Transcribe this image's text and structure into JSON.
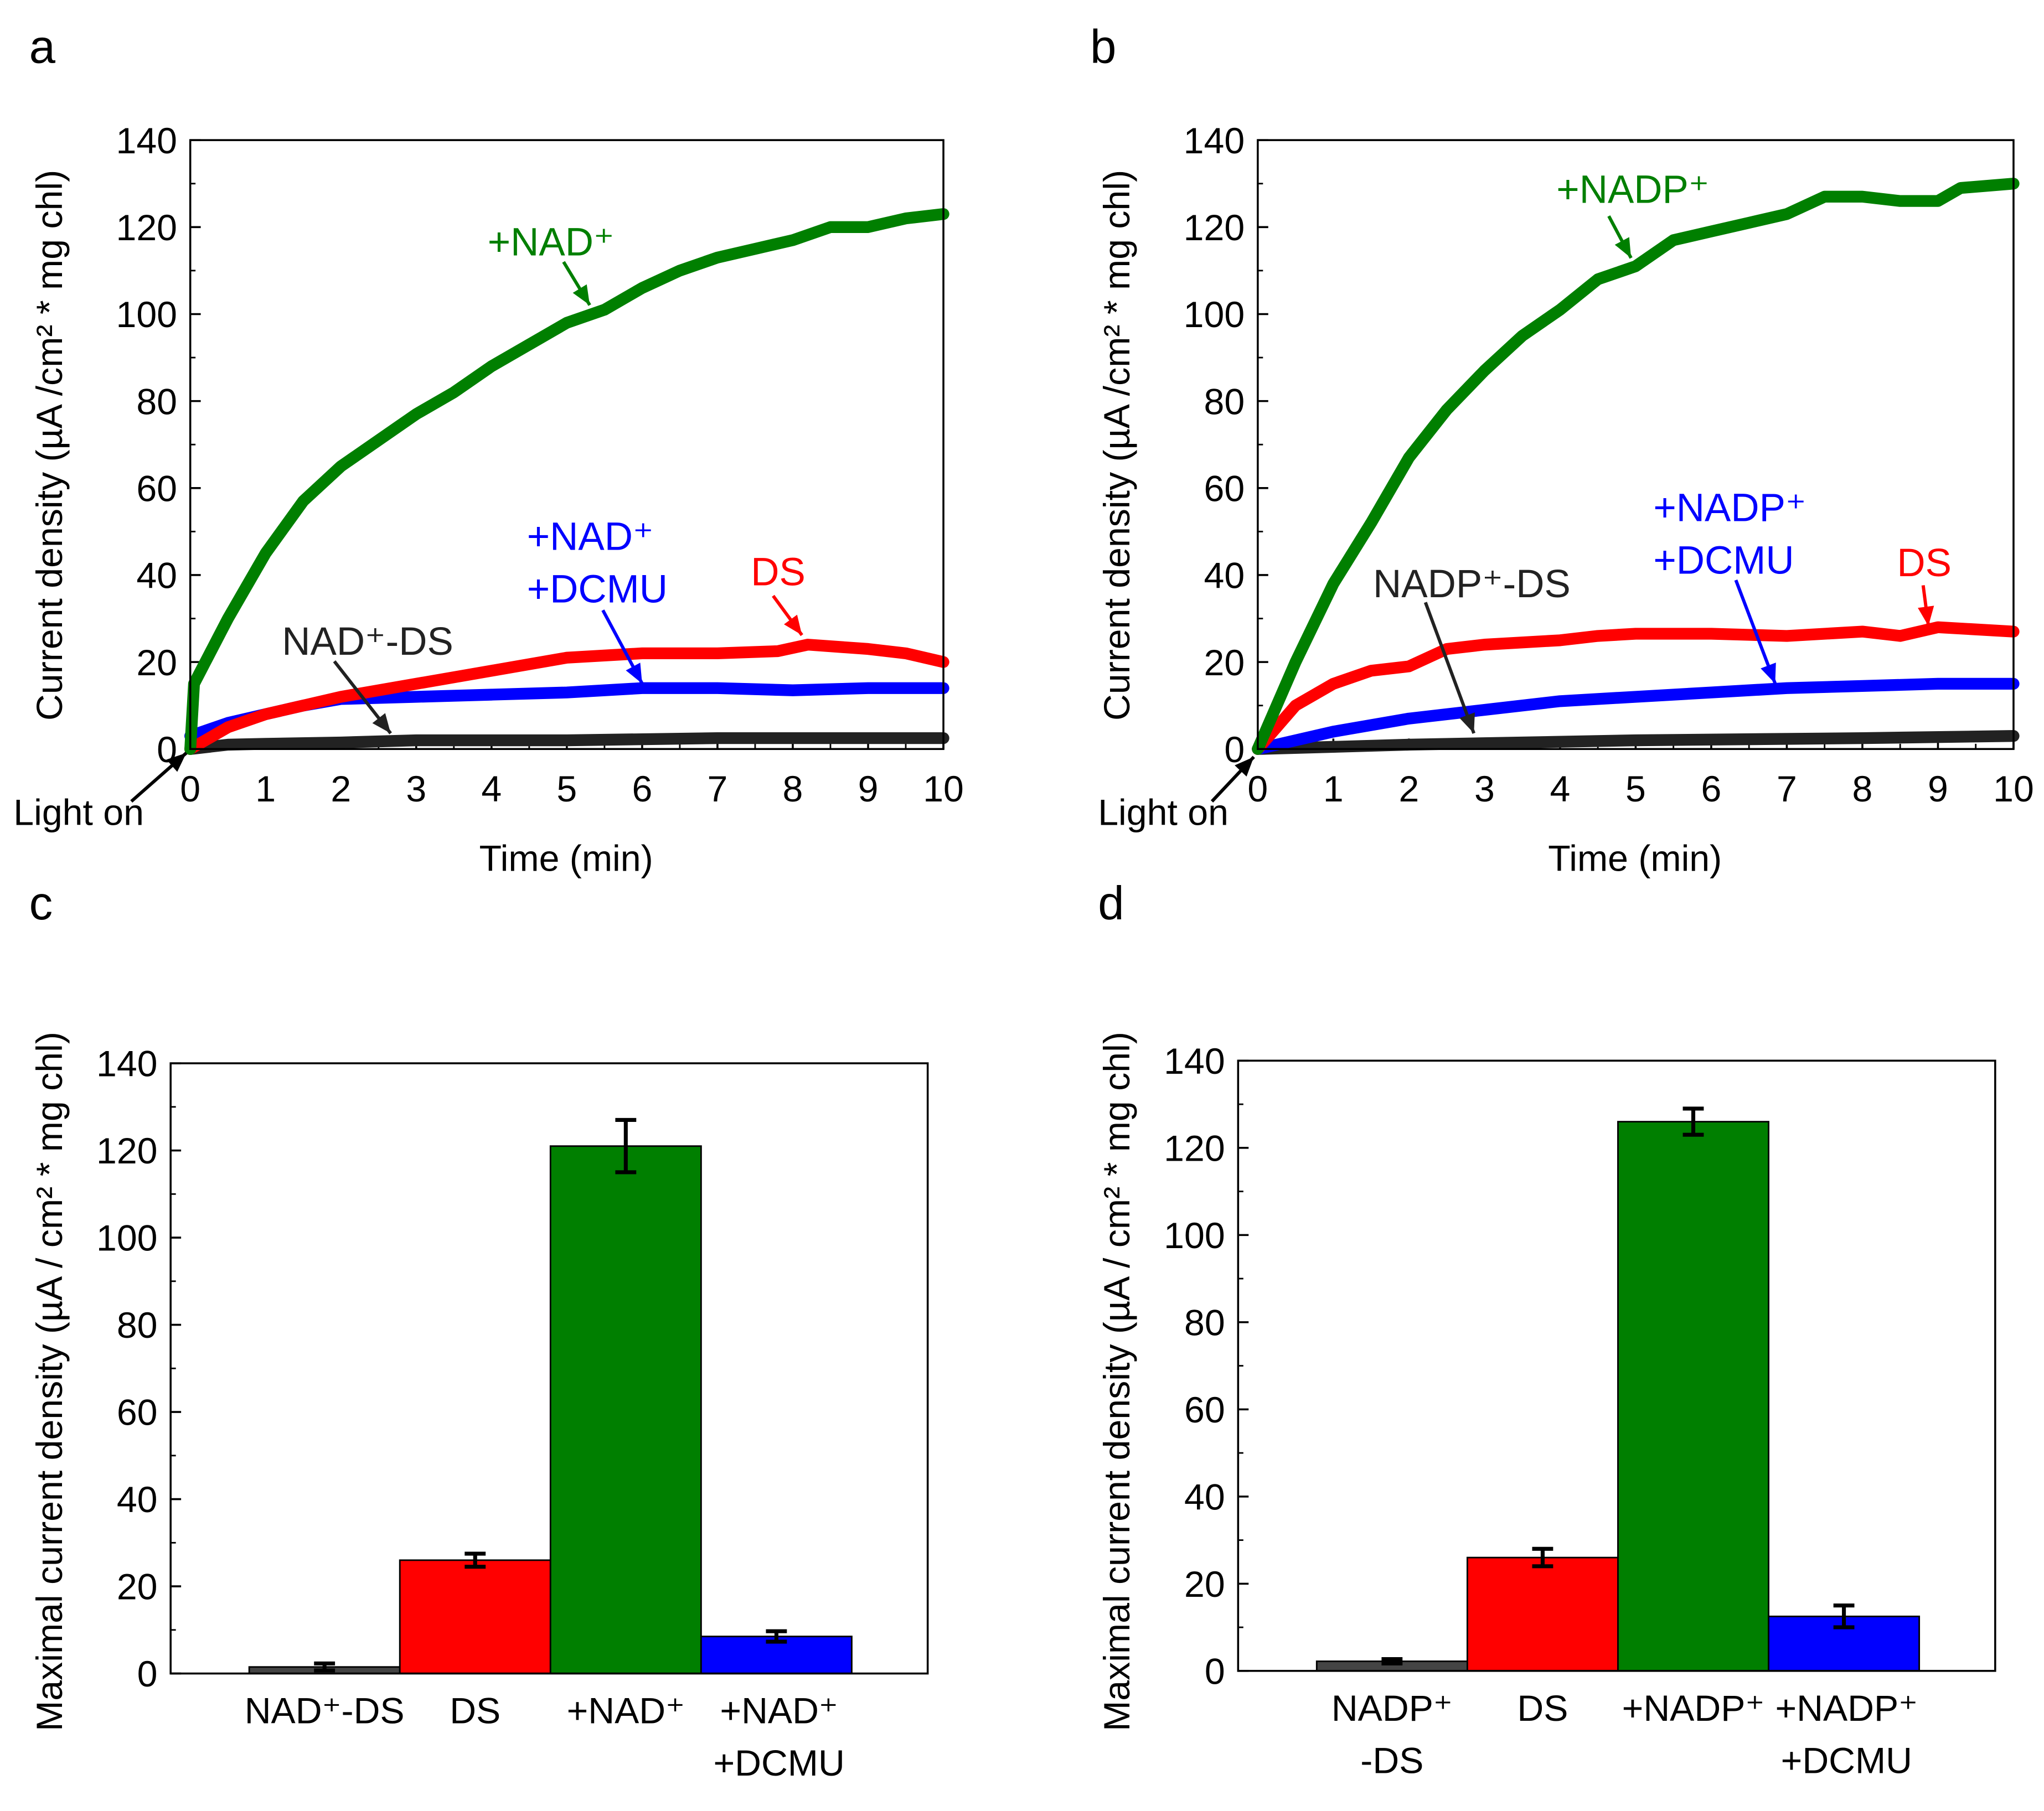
{
  "colors": {
    "black": "#222222",
    "red": "#ff0000",
    "green": "#007f00",
    "blue": "#0000ff",
    "bar_black": "#444444"
  },
  "chart_data": [
    {
      "panel": "a",
      "type": "line",
      "xlabel": "Time (min)",
      "ylabel": "Current density (µA /cm² * mg chl)",
      "xlim": [
        0,
        10
      ],
      "ylim": [
        0,
        140
      ],
      "xticks": [
        "0",
        "1",
        "2",
        "3",
        "4",
        "5",
        "6",
        "7",
        "8",
        "9",
        "10"
      ],
      "yticks": [
        "0",
        "20",
        "40",
        "60",
        "80",
        "100",
        "120",
        "140"
      ],
      "light_on_label": "Light on",
      "series": [
        {
          "name": "+NAD⁺",
          "color": "green",
          "points": [
            [
              0,
              0
            ],
            [
              0.05,
              15
            ],
            [
              0.5,
              30
            ],
            [
              1,
              45
            ],
            [
              1.5,
              57
            ],
            [
              2,
              65
            ],
            [
              2.5,
              71
            ],
            [
              3,
              77
            ],
            [
              3.5,
              82
            ],
            [
              4,
              88
            ],
            [
              4.5,
              93
            ],
            [
              5,
              98
            ],
            [
              5.5,
              101
            ],
            [
              6,
              106
            ],
            [
              6.5,
              110
            ],
            [
              7,
              113
            ],
            [
              7.5,
              115
            ],
            [
              8,
              117
            ],
            [
              8.5,
              120
            ],
            [
              9,
              120
            ],
            [
              9.5,
              122
            ],
            [
              10,
              123
            ]
          ]
        },
        {
          "name": "DS",
          "color": "red",
          "points": [
            [
              0,
              0
            ],
            [
              0.5,
              5
            ],
            [
              1,
              8
            ],
            [
              1.5,
              10
            ],
            [
              2,
              12
            ],
            [
              3,
              15
            ],
            [
              4,
              18
            ],
            [
              5,
              21
            ],
            [
              6,
              22
            ],
            [
              7,
              22
            ],
            [
              7.8,
              22.5
            ],
            [
              8.2,
              24
            ],
            [
              9,
              23
            ],
            [
              9.5,
              22
            ],
            [
              10,
              20
            ]
          ]
        },
        {
          "name": "+NAD⁺ +DCMU",
          "color": "blue",
          "points": [
            [
              0,
              3
            ],
            [
              0.5,
              6
            ],
            [
              1,
              8
            ],
            [
              1.5,
              10
            ],
            [
              2,
              11.5
            ],
            [
              3,
              12
            ],
            [
              4,
              12.5
            ],
            [
              5,
              13
            ],
            [
              6,
              14
            ],
            [
              7,
              14
            ],
            [
              8,
              13.5
            ],
            [
              9,
              14
            ],
            [
              10,
              14
            ]
          ]
        },
        {
          "name": "NAD⁺-DS",
          "color": "black",
          "points": [
            [
              0,
              0
            ],
            [
              0.5,
              1
            ],
            [
              1,
              1.2
            ],
            [
              2,
              1.5
            ],
            [
              3,
              2
            ],
            [
              5,
              2
            ],
            [
              7,
              2.5
            ],
            [
              10,
              2.5
            ]
          ]
        }
      ],
      "annotations": [
        {
          "lines": [
            "+NAD⁺"
          ],
          "color": "green"
        },
        {
          "lines": [
            "+NAD⁺",
            "+DCMU"
          ],
          "color": "blue"
        },
        {
          "lines": [
            "DS"
          ],
          "color": "red"
        },
        {
          "lines": [
            "NAD⁺-DS"
          ],
          "color": "black"
        }
      ]
    },
    {
      "panel": "b",
      "type": "line",
      "xlabel": "Time (min)",
      "ylabel": "Current density (µA /cm² * mg chl)",
      "xlim": [
        0,
        10
      ],
      "ylim": [
        0,
        140
      ],
      "xticks": [
        "0",
        "1",
        "2",
        "3",
        "4",
        "5",
        "6",
        "7",
        "8",
        "9",
        "10"
      ],
      "yticks": [
        "0",
        "20",
        "40",
        "60",
        "80",
        "100",
        "120",
        "140"
      ],
      "light_on_label": "Light on",
      "series": [
        {
          "name": "+NADP⁺",
          "color": "green",
          "points": [
            [
              0,
              0
            ],
            [
              0.5,
              20
            ],
            [
              1,
              38
            ],
            [
              1.5,
              52
            ],
            [
              2,
              67
            ],
            [
              2.5,
              78
            ],
            [
              3,
              87
            ],
            [
              3.5,
              95
            ],
            [
              4,
              101
            ],
            [
              4.5,
              108
            ],
            [
              5,
              111
            ],
            [
              5.5,
              117
            ],
            [
              6,
              119
            ],
            [
              6.5,
              121
            ],
            [
              7,
              123
            ],
            [
              7.5,
              127
            ],
            [
              8,
              127
            ],
            [
              8.5,
              126
            ],
            [
              9,
              126
            ],
            [
              9.3,
              129
            ],
            [
              10,
              130
            ]
          ]
        },
        {
          "name": "DS",
          "color": "red",
          "points": [
            [
              0,
              0
            ],
            [
              0.5,
              10
            ],
            [
              1,
              15
            ],
            [
              1.5,
              18
            ],
            [
              2,
              19
            ],
            [
              2.5,
              23
            ],
            [
              3,
              24
            ],
            [
              4,
              25
            ],
            [
              4.5,
              26
            ],
            [
              5,
              26.5
            ],
            [
              6,
              26.5
            ],
            [
              7,
              26
            ],
            [
              8,
              27
            ],
            [
              8.5,
              26
            ],
            [
              9,
              28
            ],
            [
              10,
              27
            ]
          ]
        },
        {
          "name": "+NADP⁺ +DCMU",
          "color": "blue",
          "points": [
            [
              0,
              0
            ],
            [
              1,
              4
            ],
            [
              2,
              7
            ],
            [
              3,
              9
            ],
            [
              4,
              11
            ],
            [
              5,
              12
            ],
            [
              6,
              13
            ],
            [
              7,
              14
            ],
            [
              8,
              14.5
            ],
            [
              9,
              15
            ],
            [
              10,
              15
            ]
          ]
        },
        {
          "name": "NADP⁺-DS",
          "color": "black",
          "points": [
            [
              0,
              0
            ],
            [
              2,
              1
            ],
            [
              5,
              2
            ],
            [
              8,
              2.5
            ],
            [
              10,
              3
            ]
          ]
        }
      ],
      "annotations": [
        {
          "lines": [
            "+NADP⁺"
          ],
          "color": "green"
        },
        {
          "lines": [
            "+NADP⁺",
            "+DCMU"
          ],
          "color": "blue"
        },
        {
          "lines": [
            "DS"
          ],
          "color": "red"
        },
        {
          "lines": [
            "NADP⁺-DS"
          ],
          "color": "black"
        }
      ]
    },
    {
      "panel": "c",
      "type": "bar",
      "ylabel": "Maximal current density (µA / cm² * mg chl)",
      "ylim": [
        0,
        140
      ],
      "yticks": [
        "0",
        "20",
        "40",
        "60",
        "80",
        "100",
        "120",
        "140"
      ],
      "categories": [
        [
          "NAD⁺-DS"
        ],
        [
          "DS"
        ],
        [
          "+NAD⁺"
        ],
        [
          "+NAD⁺",
          "+DCMU"
        ]
      ],
      "values": [
        1.5,
        26,
        121,
        8.5
      ],
      "errors": [
        0.8,
        1.5,
        6,
        1.2
      ],
      "bar_colors": [
        "bar_black",
        "red",
        "green",
        "blue"
      ]
    },
    {
      "panel": "d",
      "type": "bar",
      "ylabel": "Maximal current density (µA / cm² * mg chl)",
      "ylim": [
        0,
        140
      ],
      "yticks": [
        "0",
        "20",
        "40",
        "60",
        "80",
        "100",
        "120",
        "140"
      ],
      "categories": [
        [
          "NADP⁺",
          "-DS"
        ],
        [
          "DS"
        ],
        [
          "+NADP⁺"
        ],
        [
          "+NADP⁺",
          "+DCMU"
        ]
      ],
      "values": [
        2.2,
        26,
        126,
        12.5
      ],
      "errors": [
        0.5,
        2,
        3,
        2.5
      ],
      "bar_colors": [
        "bar_black",
        "red",
        "green",
        "blue"
      ]
    }
  ]
}
